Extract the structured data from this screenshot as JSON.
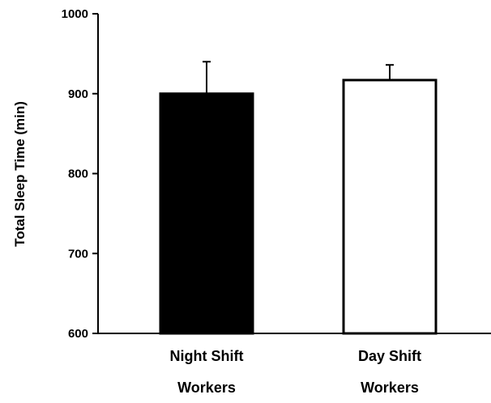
{
  "chart_data": {
    "type": "bar",
    "title": "",
    "xlabel": "",
    "ylabel": "Total Sleep Time (min)",
    "ylim": [
      600,
      1000
    ],
    "yticks": [
      600,
      700,
      800,
      900,
      1000
    ],
    "yticks_labels": [
      "600",
      "700",
      "800",
      "900",
      "1000"
    ],
    "grid": false,
    "categories": [
      {
        "line1": "Night Shift",
        "line2": "Workers"
      },
      {
        "line1": "Day Shift",
        "line2": "Workers"
      }
    ],
    "values": [
      900,
      917
    ],
    "error_upper": [
      940,
      936
    ],
    "colors": {
      "fills": [
        "#000000",
        "#ffffff"
      ],
      "stroke": "#000000"
    }
  }
}
